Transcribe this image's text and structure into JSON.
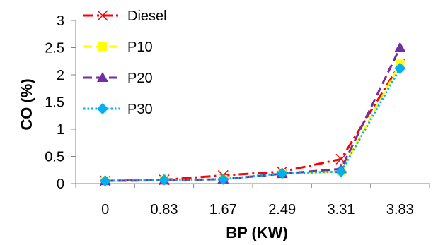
{
  "chart_data": {
    "type": "line",
    "title": "",
    "xlabel": "BP  (KW)",
    "ylabel": "CO  (%)",
    "categories": [
      "0",
      "0.83",
      "1.67",
      "2.49",
      "3.31",
      "3.83"
    ],
    "ylim": [
      0,
      3
    ],
    "yticks": [
      "0",
      "0.5",
      "1",
      "1.5",
      "2",
      "2.5",
      "3"
    ],
    "grid": false,
    "legend_position": "top-left",
    "series": [
      {
        "name": "Diesel",
        "values": [
          0.05,
          0.07,
          0.15,
          0.22,
          0.45,
          2.2
        ],
        "color": "#FF0000",
        "dash": "dash-dot",
        "marker": "x"
      },
      {
        "name": "P10",
        "values": [
          0.05,
          0.06,
          0.08,
          0.18,
          0.22,
          2.2
        ],
        "color": "#FFFF00",
        "dash": "dash",
        "marker": "square"
      },
      {
        "name": "P20",
        "values": [
          0.05,
          0.06,
          0.08,
          0.18,
          0.27,
          2.5
        ],
        "color": "#7030A0",
        "dash": "dash",
        "marker": "triangle"
      },
      {
        "name": "P30",
        "values": [
          0.05,
          0.07,
          0.08,
          0.19,
          0.22,
          2.12
        ],
        "color": "#00B0F0",
        "dash": "dot",
        "marker": "diamond"
      }
    ]
  }
}
